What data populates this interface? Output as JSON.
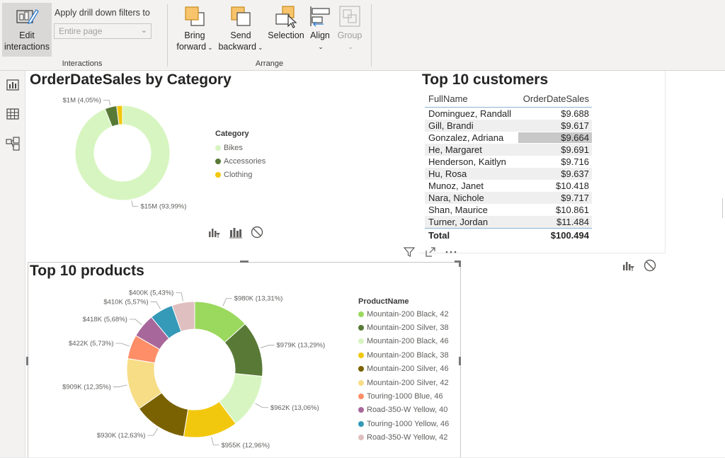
{
  "ribbon": {
    "edit_interactions": {
      "line1": "Edit",
      "line2": "interactions"
    },
    "drill_label": "Apply drill down filters to",
    "drill_select_value": "Entire page",
    "interactions_group": "Interactions",
    "bring_forward": {
      "line1": "Bring",
      "line2": "forward"
    },
    "send_backward": {
      "line1": "Send",
      "line2": "backward"
    },
    "selection": "Selection",
    "align": "Align",
    "group": "Group",
    "arrange_group": "Arrange"
  },
  "rail": {
    "icons": [
      "report-view-icon",
      "data-view-icon",
      "model-view-icon"
    ]
  },
  "category_chart": {
    "title": "OrderDateSales by Category",
    "legend_title": "Category",
    "chart_data": {
      "type": "pie",
      "title": "OrderDateSales by Category",
      "categories": [
        "Bikes",
        "Accessories",
        "Clothing"
      ],
      "values": [
        93.99,
        4.05,
        1.96
      ],
      "colors": [
        "#d7f5c0",
        "#587a36",
        "#f2c80f"
      ],
      "data_labels": [
        "$15M (93,99%)",
        "$1M (4,05%)",
        ""
      ],
      "legend_position": "right"
    }
  },
  "customers_table": {
    "title": "Top 10 customers",
    "headers": [
      "FullName",
      "OrderDateSales"
    ],
    "rows": [
      [
        "Dominguez, Randall",
        "$9.688"
      ],
      [
        "Gill, Brandi",
        "$9.617"
      ],
      [
        "Gonzalez, Adriana",
        "$9.664"
      ],
      [
        "He, Margaret",
        "$9.691"
      ],
      [
        "Henderson, Kaitlyn",
        "$9.716"
      ],
      [
        "Hu, Rosa",
        "$9.637"
      ],
      [
        "Munoz, Janet",
        "$10.418"
      ],
      [
        "Nara, Nichole",
        "$9.717"
      ],
      [
        "Shan, Maurice",
        "$10.861"
      ],
      [
        "Turner, Jordan",
        "$11.484"
      ]
    ],
    "total": [
      "Total",
      "$100.494"
    ]
  },
  "products_chart": {
    "title": "Top 10 products",
    "legend_title": "ProductName",
    "chart_data": {
      "type": "pie",
      "title": "Top 10 products",
      "categories": [
        "Mountain-200 Black, 42",
        "Mountain-200 Silver, 38",
        "Mountain-200 Black, 46",
        "Mountain-200 Black, 38",
        "Mountain-200 Silver, 46",
        "Mountain-200 Silver, 42",
        "Touring-1000 Blue, 46",
        "Road-350-W Yellow, 40",
        "Touring-1000 Yellow, 46",
        "Road-350-W Yellow, 42"
      ],
      "values": [
        13.31,
        13.29,
        13.06,
        12.96,
        12.63,
        12.35,
        5.73,
        5.68,
        5.57,
        5.43
      ],
      "colors": [
        "#9bd85e",
        "#587a36",
        "#d7f5c0",
        "#f2c80f",
        "#7a6202",
        "#f7dd86",
        "#fd8e67",
        "#a8679a",
        "#3599b8",
        "#dfbfbf"
      ],
      "data_labels": [
        "$980K (13,31%)",
        "$979K (13,29%)",
        "$962K (13,06%)",
        "$955K (12,96%)",
        "$930K (12,63%)",
        "$909K (12,35%)",
        "$422K (5,73%)",
        "$418K (5,68%)",
        "$410K (5,57%)",
        "$400K (5,43%)"
      ],
      "legend_position": "right"
    }
  }
}
